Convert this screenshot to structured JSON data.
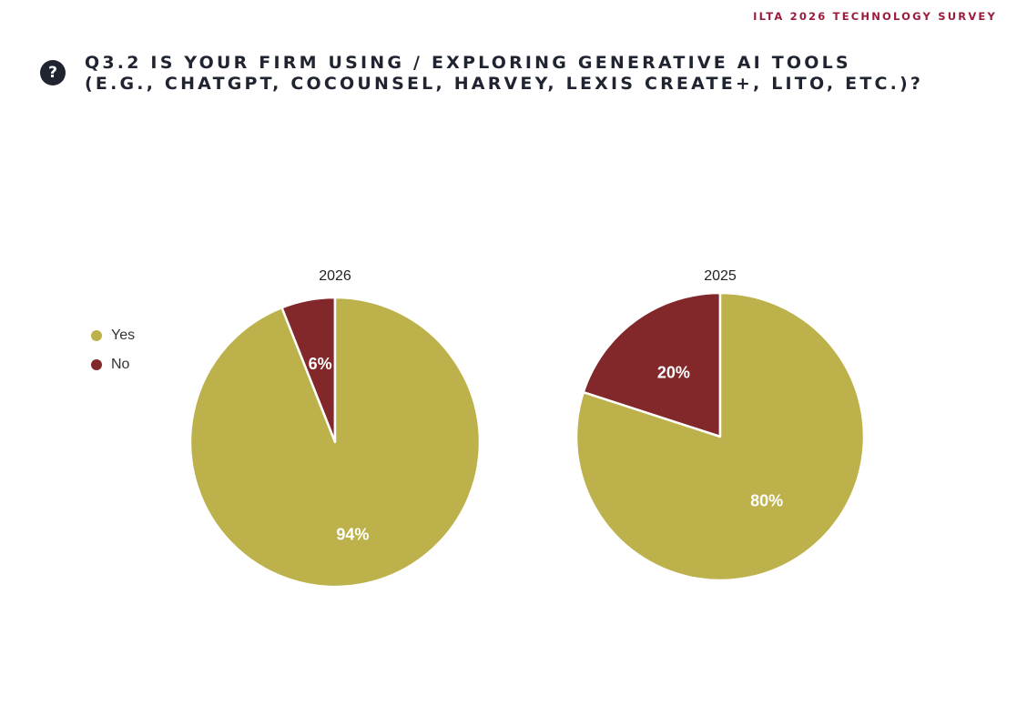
{
  "header": {
    "survey_label": "ILTA 2026 TECHNOLOGY SURVEY"
  },
  "question": {
    "icon": "question-mark-icon",
    "title_line1": "Q3.2 IS YOUR FIRM USING / EXPLORING GENERATIVE AI TOOLS",
    "title_line2": "(E.G., CHATGPT, COCOUNSEL, HARVEY, LEXIS CREATE+, LITO, ETC.)?"
  },
  "legend": [
    {
      "label": "Yes",
      "color": "#bcb14a"
    },
    {
      "label": "No",
      "color": "#82282a"
    }
  ],
  "chart_data": [
    {
      "type": "pie",
      "title": "2026",
      "categories": [
        "Yes",
        "No"
      ],
      "values": [
        94,
        6
      ],
      "labels": [
        "94%",
        "6%"
      ],
      "colors": [
        "#bcb14a",
        "#82282a"
      ],
      "legend_position": "left"
    },
    {
      "type": "pie",
      "title": "2025",
      "categories": [
        "Yes",
        "No"
      ],
      "values": [
        80,
        20
      ],
      "labels": [
        "80%",
        "20%"
      ],
      "colors": [
        "#bcb14a",
        "#82282a"
      ],
      "legend_position": "left"
    }
  ]
}
